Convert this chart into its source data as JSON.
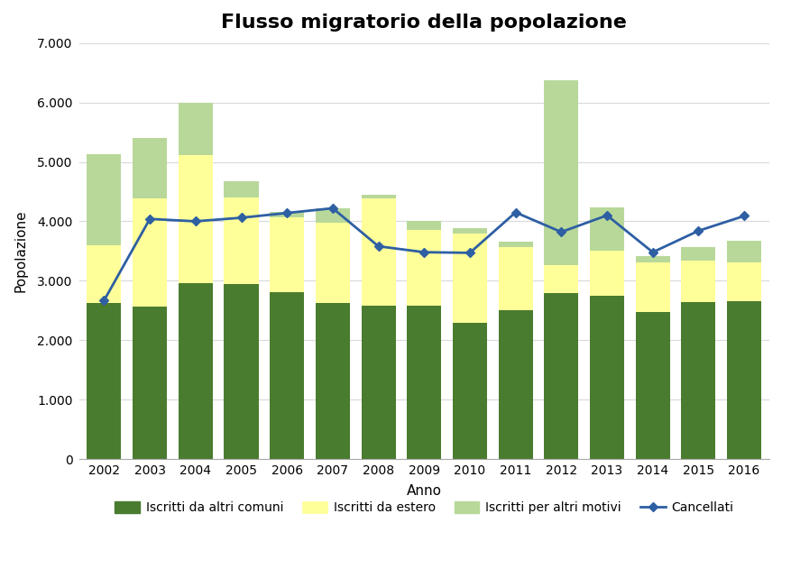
{
  "years": [
    2002,
    2003,
    2004,
    2005,
    2006,
    2007,
    2008,
    2009,
    2010,
    2011,
    2012,
    2013,
    2014,
    2015,
    2016
  ],
  "iscritti_altri_comuni": [
    2620,
    2560,
    2960,
    2950,
    2810,
    2620,
    2580,
    2580,
    2290,
    2510,
    2790,
    2750,
    2470,
    2640,
    2650
  ],
  "iscritti_estero": [
    980,
    1820,
    2160,
    1450,
    1260,
    1360,
    1800,
    1270,
    1510,
    1060,
    480,
    760,
    840,
    700,
    660
  ],
  "iscritti_altri_motivi": [
    1530,
    1020,
    870,
    280,
    90,
    240,
    60,
    160,
    90,
    90,
    3100,
    720,
    110,
    220,
    370
  ],
  "cancellati": [
    2670,
    4040,
    4000,
    4060,
    4140,
    4220,
    3580,
    3480,
    3470,
    4150,
    3820,
    4100,
    3480,
    3840,
    4090
  ],
  "title": "Flusso migratorio della popolazione",
  "xlabel": "Anno",
  "ylabel": "Popolazione",
  "ylim": [
    0,
    7000
  ],
  "yticks": [
    0,
    1000,
    2000,
    3000,
    4000,
    5000,
    6000,
    7000
  ],
  "ytick_labels": [
    "0",
    "1.000",
    "2.000",
    "3.000",
    "4.000",
    "5.000",
    "6.000",
    "7.000"
  ],
  "color_altri_comuni": "#4a7c2f",
  "color_estero": "#ffff99",
  "color_altri_motivi": "#b8d89a",
  "color_cancellati": "#2e5fa3",
  "legend_labels": [
    "Iscritti da altri comuni",
    "Iscritti da estero",
    "Iscritti per altri motivi",
    "Cancellati"
  ],
  "bar_width": 0.75,
  "title_fontsize": 16,
  "axis_fontsize": 11,
  "tick_fontsize": 10,
  "legend_fontsize": 10,
  "background_color": "#ffffff",
  "grid_color": "#d9d9d9"
}
